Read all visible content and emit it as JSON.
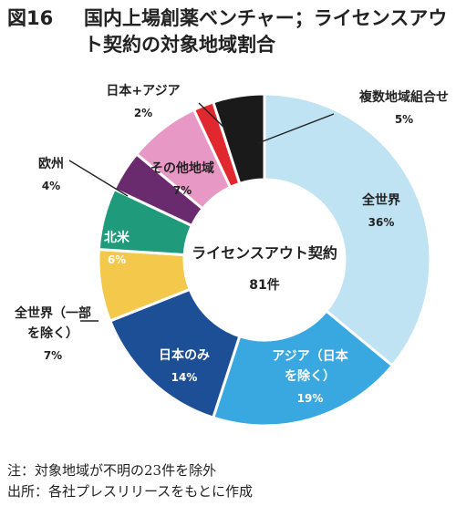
{
  "title": {
    "number": "図16",
    "line1": "国内上場創薬ベンチャー；ライセンスアウ",
    "line2": "ト契約の対象地域割合"
  },
  "chart_data": {
    "type": "pie",
    "title": "",
    "center_label": [
      "ライセンスアウト契約",
      "81件"
    ],
    "unit": "%",
    "slices": [
      {
        "label": [
          "全世界"
        ],
        "value": 36,
        "color": "#bfe3f2"
      },
      {
        "label": [
          "アジア（日本",
          "を除く）"
        ],
        "value": 19,
        "color": "#3aa8e0"
      },
      {
        "label": [
          "日本のみ"
        ],
        "value": 14,
        "color": "#1d4f96"
      },
      {
        "label": [
          "全世界（一部",
          "を除く）"
        ],
        "value": 7,
        "color": "#f4c84a"
      },
      {
        "label": [
          "北米"
        ],
        "value": 6,
        "color": "#1f9a7a"
      },
      {
        "label": [
          "欧州"
        ],
        "value": 4,
        "color": "#6a2a6e"
      },
      {
        "label": [
          "その他地域"
        ],
        "value": 7,
        "color": "#e898c4"
      },
      {
        "label": [
          "日本+アジア"
        ],
        "value": 2,
        "color": "#e0282e"
      },
      {
        "label": [
          "複数地域組合せ"
        ],
        "value": 5,
        "color": "#1a1a1a"
      }
    ]
  },
  "notes": {
    "note1": "注：対象地域が不明の23件を除外",
    "note2": "出所：各社プレスリリースをもとに作成"
  }
}
